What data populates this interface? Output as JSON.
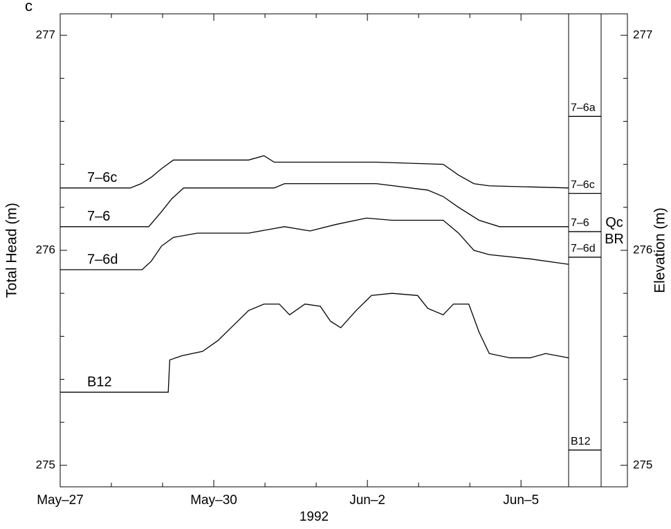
{
  "chart_data": {
    "type": "line",
    "panel_label": "c",
    "xlabel": "1992",
    "ylabel": "Total Head (m)",
    "y2label": "Elevation (m)",
    "xlim": [
      0,
      9.93
    ],
    "xticks": [
      {
        "value": 0,
        "label": "May–27"
      },
      {
        "value": 3,
        "label": "May–30"
      },
      {
        "value": 6,
        "label": "Jun–2"
      },
      {
        "value": 9,
        "label": "Jun–5"
      }
    ],
    "xminorticks": [
      1,
      2,
      4,
      5,
      7,
      8
    ],
    "ylim": [
      274.9,
      277.1
    ],
    "yticks": [
      275,
      276,
      277
    ],
    "yminorticks": [
      275.2,
      275.4,
      275.6,
      275.8,
      276.2,
      276.4,
      276.6,
      276.8
    ],
    "y2lim": [
      274.9,
      277.1
    ],
    "y2ticks": [
      275,
      276,
      277
    ],
    "series": [
      {
        "name": "7–6c",
        "color": "#000000",
        "x": [
          0,
          1.37,
          1.58,
          1.78,
          1.98,
          2.21,
          3.68,
          3.98,
          4.18,
          5.18,
          6.18,
          7.48,
          7.78,
          8.08,
          8.38,
          9.93
        ],
        "values": [
          276.29,
          276.29,
          276.31,
          276.34,
          276.38,
          276.42,
          276.42,
          276.44,
          276.41,
          276.41,
          276.41,
          276.4,
          276.35,
          276.31,
          276.3,
          276.29
        ]
      },
      {
        "name": "7–6",
        "color": "#000000",
        "x": [
          0,
          1.73,
          1.98,
          2.18,
          2.41,
          4.18,
          4.38,
          5.18,
          6.18,
          7.18,
          7.48,
          7.78,
          8.18,
          8.58,
          9.93
        ],
        "values": [
          276.11,
          276.11,
          276.18,
          276.24,
          276.29,
          276.29,
          276.31,
          276.31,
          276.31,
          276.28,
          276.25,
          276.2,
          276.14,
          276.11,
          276.11
        ]
      },
      {
        "name": "7–6d",
        "color": "#000000",
        "x": [
          0,
          1.6,
          1.78,
          1.98,
          2.21,
          2.68,
          3.68,
          4.38,
          4.88,
          5.38,
          5.98,
          6.48,
          7.48,
          7.78,
          8.08,
          8.38,
          9.18,
          9.93
        ],
        "values": [
          275.91,
          275.91,
          275.95,
          276.02,
          276.06,
          276.08,
          276.08,
          276.11,
          276.09,
          276.12,
          276.15,
          276.14,
          276.14,
          276.08,
          276.0,
          275.98,
          275.96,
          275.935
        ]
      },
      {
        "name": "B12",
        "color": "#000000",
        "x": [
          0,
          2.11,
          2.14,
          2.38,
          2.78,
          3.08,
          3.38,
          3.68,
          3.98,
          4.28,
          4.48,
          4.78,
          5.08,
          5.28,
          5.48,
          5.78,
          6.08,
          6.48,
          6.98,
          7.18,
          7.48,
          7.68,
          7.98,
          8.18,
          8.38,
          8.78,
          9.18,
          9.48,
          9.93
        ],
        "values": [
          275.34,
          275.34,
          275.49,
          275.51,
          275.53,
          275.58,
          275.65,
          275.72,
          275.75,
          275.75,
          275.7,
          275.75,
          275.74,
          275.67,
          275.64,
          275.72,
          275.79,
          275.8,
          275.79,
          275.73,
          275.7,
          275.75,
          275.75,
          275.62,
          275.52,
          275.5,
          275.5,
          275.52,
          275.5
        ]
      }
    ],
    "well_screens": {
      "labels": [
        "7–6a",
        "7–6c",
        "7–6",
        "7–6d",
        "B12"
      ],
      "elevations": [
        276.623,
        276.265,
        276.087,
        275.968,
        275.071
      ]
    },
    "units": [
      "Qc",
      "BR"
    ]
  }
}
